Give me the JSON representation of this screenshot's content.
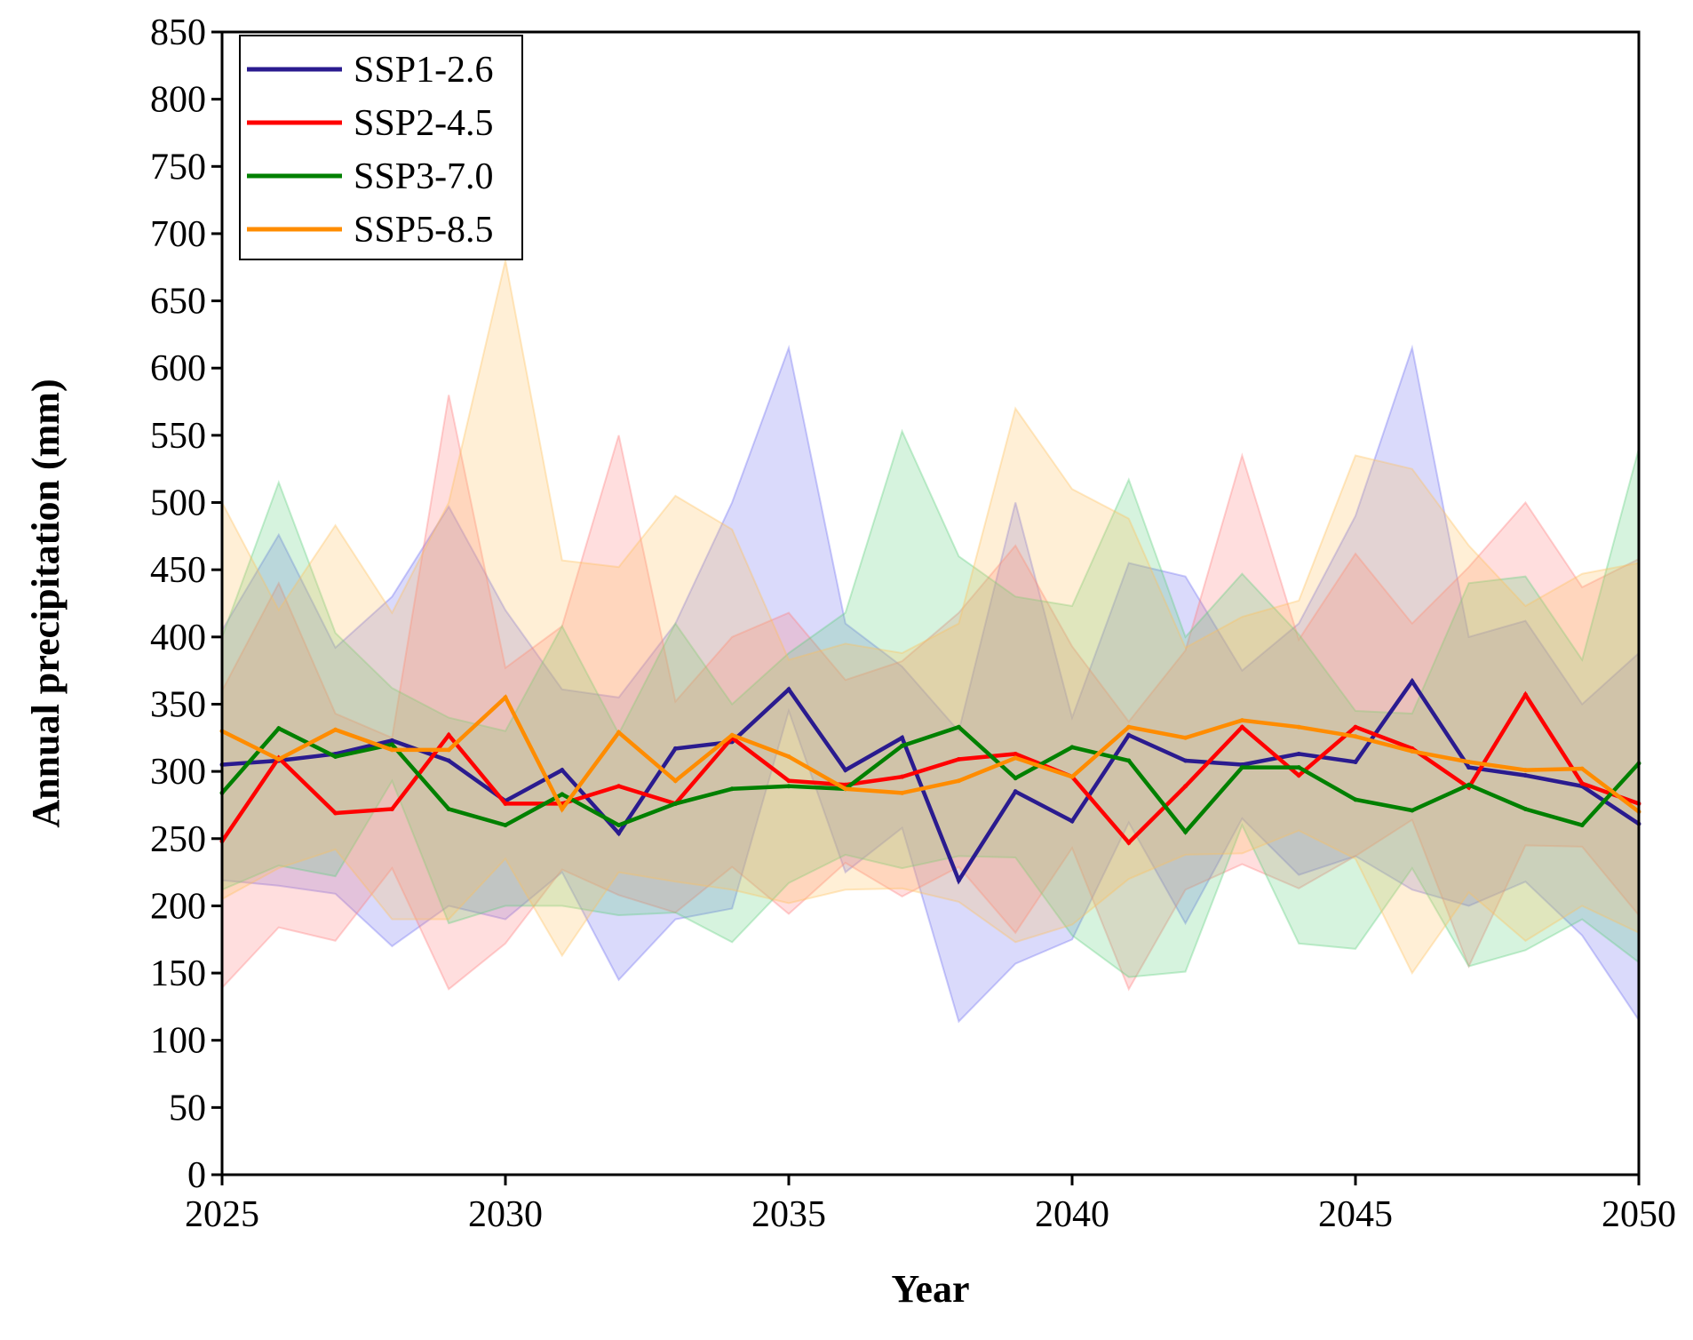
{
  "chart_data": {
    "type": "line",
    "title": "",
    "xlabel": "Year",
    "ylabel": "Annual precipitation (mm)",
    "xlim": [
      2025,
      2050
    ],
    "ylim": [
      0,
      850
    ],
    "xticks": [
      2025,
      2030,
      2035,
      2040,
      2045,
      2050
    ],
    "yticks": [
      0,
      50,
      100,
      150,
      200,
      250,
      300,
      350,
      400,
      450,
      500,
      550,
      600,
      650,
      700,
      750,
      800,
      850
    ],
    "x": [
      2025,
      2026,
      2027,
      2028,
      2029,
      2030,
      2031,
      2032,
      2033,
      2034,
      2035,
      2036,
      2037,
      2038,
      2039,
      2040,
      2041,
      2042,
      2043,
      2044,
      2045,
      2046,
      2047,
      2048,
      2049,
      2050
    ],
    "legend_position": "top-left",
    "series": [
      {
        "name": "SSP1-2.6",
        "color": "#2a1b8f",
        "band_color": "#6a6af0",
        "values": [
          305,
          308,
          313,
          323,
          308,
          278,
          301,
          254,
          317,
          322,
          361,
          301,
          325,
          219,
          285,
          263,
          327,
          308,
          305,
          313,
          307,
          367,
          303,
          297,
          289,
          261
        ],
        "upper": [
          405,
          476,
          392,
          430,
          497,
          420,
          361,
          355,
          410,
          500,
          615,
          410,
          378,
          330,
          500,
          340,
          455,
          445,
          375,
          410,
          490,
          615,
          400,
          412,
          350,
          388
        ],
        "lower": [
          219,
          215,
          209,
          170,
          200,
          190,
          225,
          145,
          190,
          198,
          345,
          225,
          258,
          114,
          157,
          175,
          262,
          187,
          265,
          223,
          237,
          212,
          200,
          218,
          178,
          115
        ]
      },
      {
        "name": "SSP2-4.5",
        "color": "#ff0000",
        "band_color": "#ff7a7a",
        "values": [
          248,
          310,
          269,
          272,
          327,
          276,
          276,
          289,
          276,
          325,
          293,
          290,
          296,
          309,
          313,
          296,
          247,
          289,
          333,
          297,
          333,
          317,
          288,
          357,
          291,
          276
        ],
        "upper": [
          360,
          440,
          343,
          325,
          580,
          377,
          408,
          550,
          352,
          400,
          418,
          368,
          382,
          418,
          468,
          393,
          337,
          390,
          535,
          398,
          462,
          410,
          452,
          500,
          437,
          458
        ],
        "lower": [
          139,
          184,
          174,
          228,
          138,
          172,
          227,
          208,
          195,
          229,
          194,
          232,
          207,
          229,
          180,
          243,
          138,
          212,
          231,
          213,
          237,
          264,
          155,
          245,
          244,
          193
        ]
      },
      {
        "name": "SSP3-7.0",
        "color": "#008000",
        "band_color": "#5ccf7a",
        "values": [
          284,
          332,
          311,
          320,
          272,
          260,
          283,
          260,
          276,
          287,
          289,
          287,
          319,
          333,
          295,
          318,
          308,
          255,
          303,
          303,
          279,
          271,
          290,
          272,
          260,
          306
        ],
        "upper": [
          400,
          515,
          403,
          362,
          340,
          330,
          408,
          328,
          410,
          350,
          388,
          418,
          553,
          460,
          430,
          423,
          517,
          400,
          447,
          402,
          345,
          343,
          440,
          445,
          383,
          540
        ],
        "lower": [
          212,
          230,
          222,
          293,
          187,
          200,
          200,
          193,
          195,
          173,
          217,
          238,
          228,
          237,
          236,
          178,
          147,
          151,
          260,
          172,
          168,
          228,
          155,
          167,
          190,
          158
        ]
      },
      {
        "name": "SSP5-8.5",
        "color": "#ff8c00",
        "band_color": "#ffc15a",
        "values": [
          330,
          309,
          331,
          316,
          316,
          355,
          272,
          329,
          293,
          327,
          311,
          287,
          284,
          293,
          310,
          296,
          333,
          325,
          338,
          333,
          326,
          315,
          307,
          301,
          302,
          270
        ],
        "upper": [
          500,
          420,
          483,
          418,
          500,
          680,
          457,
          452,
          505,
          480,
          383,
          395,
          388,
          410,
          570,
          510,
          488,
          392,
          415,
          427,
          535,
          525,
          468,
          423,
          447,
          455
        ],
        "lower": [
          205,
          228,
          242,
          190,
          190,
          235,
          163,
          225,
          218,
          212,
          202,
          212,
          213,
          203,
          173,
          186,
          220,
          238,
          239,
          256,
          235,
          150,
          210,
          174,
          200,
          180
        ]
      }
    ]
  }
}
